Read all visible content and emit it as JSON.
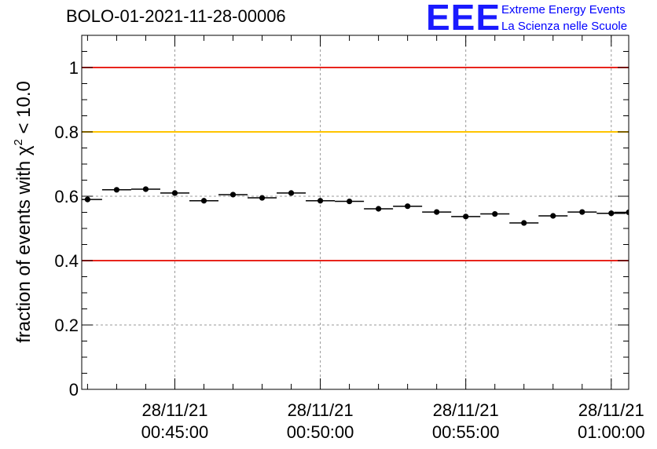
{
  "chart_data": {
    "type": "scatter",
    "title": "BOLO-01-2021-11-28-00006",
    "ylabel": "fraction of events with",
    "ylabel_symbol": "χ",
    "ylabel_power": "2",
    "ylabel_suffix": "< 10.0",
    "xlabel": "",
    "ylim": [
      0,
      1.1
    ],
    "yticks": [
      0,
      0.2,
      0.4,
      0.6,
      0.8,
      1
    ],
    "ytick_labels": [
      "0",
      "0.2",
      "0.4",
      "0.6",
      "0.8",
      "1"
    ],
    "xlim_minutes": [
      41.8,
      60.6
    ],
    "xticks_minutes": [
      45,
      50,
      55,
      60
    ],
    "xtick_labels": [
      {
        "date": "28/11/21",
        "time": "00:45:00"
      },
      {
        "date": "28/11/21",
        "time": "00:50:00"
      },
      {
        "date": "28/11/21",
        "time": "00:55:00"
      },
      {
        "date": "28/11/21",
        "time": "01:00:00"
      }
    ],
    "grid": true,
    "reference_lines": [
      {
        "y": 1.0,
        "color": "#e8251d"
      },
      {
        "y": 0.8,
        "color": "#ffc400"
      },
      {
        "y": 0.4,
        "color": "#e8251d"
      }
    ],
    "bin_width_minutes": 1,
    "series": [
      {
        "name": "fraction",
        "x_minutes": [
          42.0,
          43.0,
          44.0,
          45.0,
          46.0,
          47.0,
          48.0,
          49.0,
          50.0,
          51.0,
          52.0,
          53.0,
          54.0,
          55.0,
          56.0,
          57.0,
          58.0,
          59.0,
          60.0,
          60.6
        ],
        "values": [
          0.59,
          0.62,
          0.622,
          0.61,
          0.586,
          0.605,
          0.595,
          0.61,
          0.586,
          0.584,
          0.561,
          0.569,
          0.551,
          0.537,
          0.545,
          0.517,
          0.539,
          0.551,
          0.547,
          0.55
        ],
        "color": "#000000"
      }
    ]
  },
  "logo": {
    "letters": "EEE",
    "line1": "Extreme Energy Events",
    "line2": "La Scienza nelle Scuole",
    "color": "#0000ff"
  }
}
